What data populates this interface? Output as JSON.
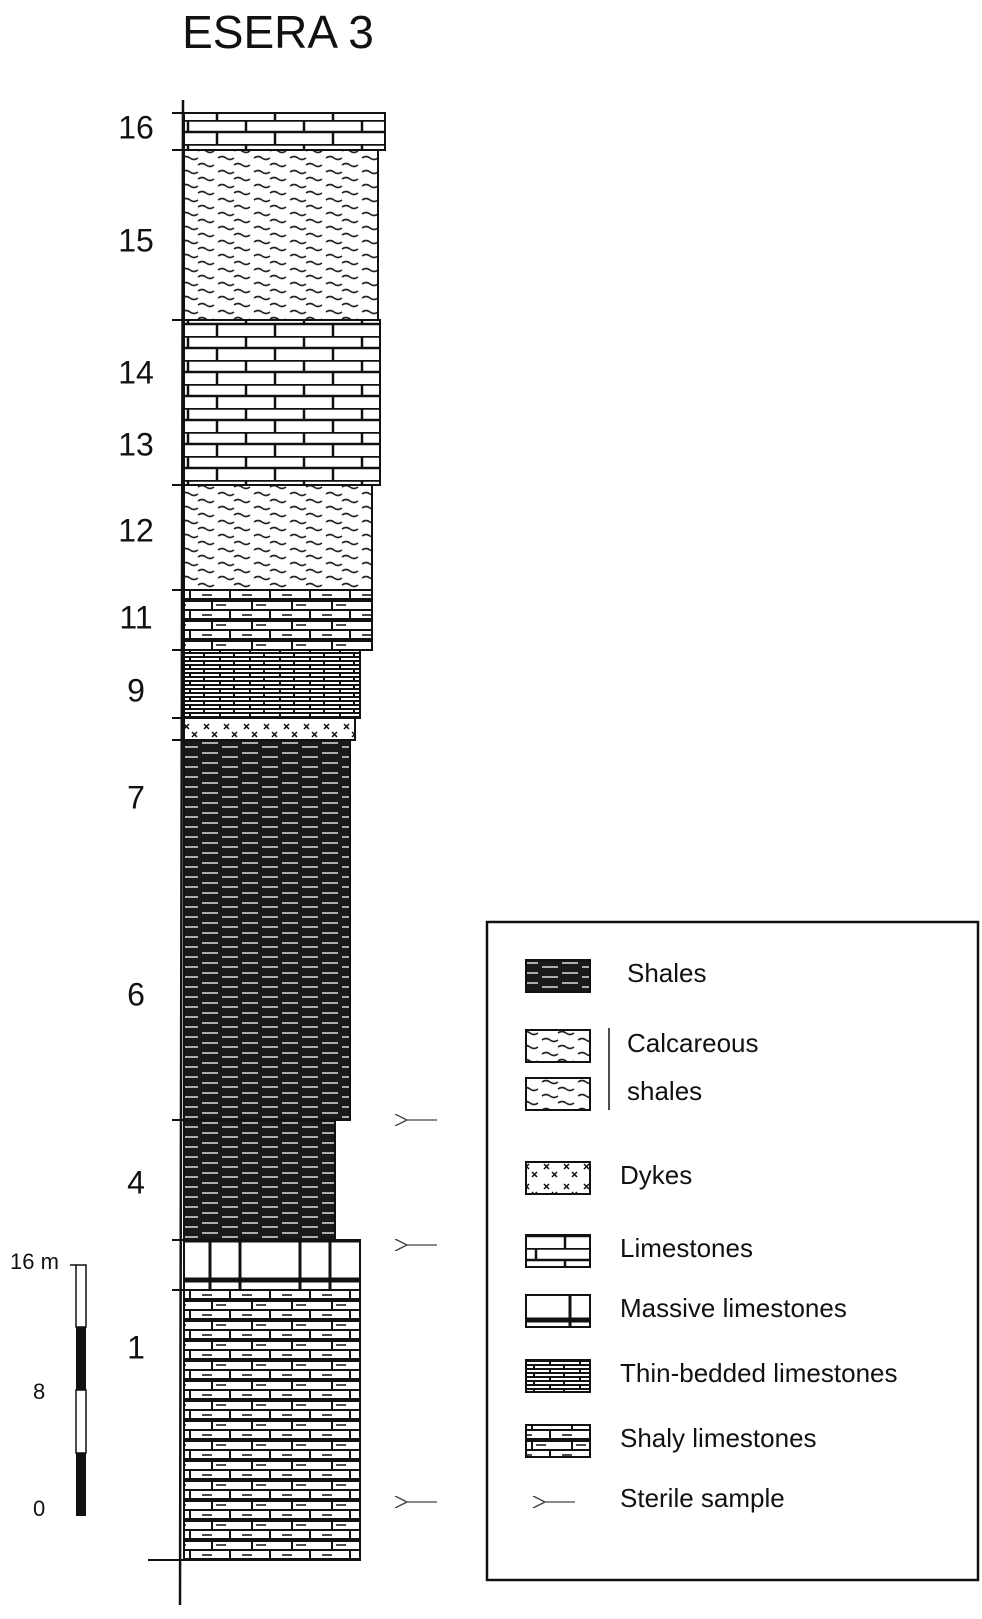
{
  "title": "ESERA 3",
  "units": [
    "16",
    "15",
    "14",
    "13",
    "12",
    "11",
    "9",
    "7",
    "6",
    "4",
    "1"
  ],
  "scale": {
    "labels": [
      "16 m",
      "8",
      "0"
    ]
  },
  "legend": {
    "items": [
      {
        "label": "Shales"
      },
      {
        "label": [
          "Calcareous",
          "shales"
        ]
      },
      {
        "label": "Dykes"
      },
      {
        "label": "Limestones"
      },
      {
        "label": "Massive limestones"
      },
      {
        "label": "Thin-bedded limestones"
      },
      {
        "label": "Shaly limestones"
      },
      {
        "label": "Sterile sample"
      }
    ]
  }
}
